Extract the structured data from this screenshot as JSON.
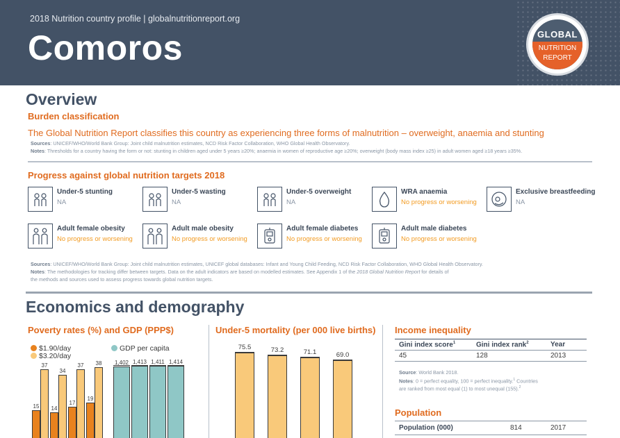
{
  "header": {
    "subtitle": "2018 Nutrition country profile  |  globalnutritionreport.org",
    "country": "Comoros",
    "logo": {
      "top": "GLOBAL",
      "mid": "NUTRITION",
      "bottom": "REPORT"
    },
    "bg_color": "#435266",
    "accent_color": "#e06b1f"
  },
  "overview": {
    "title": "Overview",
    "burden_heading": "Burden classification",
    "burden_text": "The Global Nutrition Report classifies this country as experiencing three forms of malnutrition – overweight, anaemia and stunting",
    "sources_label": "Sources",
    "sources_text": ": UNICEF/WHO/World Bank Group: Joint child malnutrition estimates, NCD Risk Factor Collaboration, WHO Global Health Observatory.",
    "notes_label": "Notes",
    "notes_text": ": Thresholds for a country having the form or not: stunting in children aged under 5 years ≥20%; anaemia in women of reproductive age ≥20%; overweight (body mass index ≥25) in adult women aged ≥18 years ≥35%."
  },
  "progress": {
    "heading": "Progress against global nutrition targets 2018",
    "indicators": [
      {
        "name": "Under-5 stunting",
        "status": "NA",
        "icon": "children-icon"
      },
      {
        "name": "Under-5 wasting",
        "status": "NA",
        "icon": "children-icon"
      },
      {
        "name": "Under-5 overweight",
        "status": "NA",
        "icon": "children-icon"
      },
      {
        "name": "WRA anaemia",
        "status": "No progress or worsening",
        "icon": "blood-drop-icon"
      },
      {
        "name": "Exclusive breastfeeding",
        "status": "NA",
        "icon": "breastfeeding-icon"
      },
      {
        "name": "Adult female obesity",
        "status": "No progress or worsening",
        "icon": "adults-icon"
      },
      {
        "name": "Adult male obesity",
        "status": "No progress or worsening",
        "icon": "adults-icon"
      },
      {
        "name": "Adult female diabetes",
        "status": "No progress or worsening",
        "icon": "glucose-meter-icon"
      },
      {
        "name": "Adult male diabetes",
        "status": "No progress or worsening",
        "icon": "glucose-meter-icon"
      }
    ],
    "sources_label": "Sources",
    "sources_text": ": UNICEF/WHO/World Bank Group: Joint child malnutrition estimates, UNICEF global databases: Infant and Young Child Feeding, NCD Risk Factor Collaboration, WHO Global Health Observatory.",
    "notes_label": "Notes",
    "notes_text_1": ": The methodologies for tracking differ between targets. Data on the adult indicators are based on modelled estimates. See Appendix 1 of the ",
    "notes_italic": "2018 Global Nutrition Report",
    "notes_text_1b": " for details of",
    "notes_text_2": "the methods and sources used to assess progress towards global nutrition targets."
  },
  "economics": {
    "title": "Economics and demography",
    "poverty_heading": "Poverty rates (%) and GDP (PPP$)",
    "mortality_heading": "Under-5 mortality (per 000 live births)",
    "inequality_heading": "Income inequality",
    "population_heading": "Population"
  },
  "chart_data": [
    {
      "type": "bar",
      "title": "Poverty rates (%) and GDP (PPP$)",
      "series": [
        {
          "name": "$1.90/day",
          "color": "#e8821e",
          "values": [
            15,
            14,
            17,
            19
          ]
        },
        {
          "name": "$3.20/day",
          "color": "#f9c97a",
          "values": [
            37,
            34,
            37,
            38
          ]
        },
        {
          "name": "GDP per capita",
          "color": "#8fc7c6",
          "values": [
            1402,
            1413,
            1411,
            1414
          ]
        }
      ],
      "labels": {
        "s1": [
          "15",
          "14",
          "17",
          "19"
        ],
        "s2": [
          "37",
          "34",
          "37",
          "38"
        ],
        "gdp": [
          "1,402",
          "1,413",
          "1,411",
          "1,414"
        ]
      }
    },
    {
      "type": "bar",
      "title": "Under-5 mortality (per 000 live births)",
      "series": [
        {
          "name": "Under-5 mortality",
          "color": "#f9c97a",
          "values": [
            75.5,
            73.2,
            71.1,
            69.0
          ]
        }
      ],
      "labels": [
        "75.5",
        "73.2",
        "71.1",
        "69.0"
      ]
    }
  ],
  "inequality_table": {
    "headers": [
      "Gini index score",
      "Gini index rank",
      "Year"
    ],
    "sup": [
      "1",
      "2",
      ""
    ],
    "row": [
      "45",
      "128",
      "2013"
    ],
    "source_label": "Source",
    "source_text": ": World Bank 2018.",
    "notes_label": "Notes",
    "notes_text": ": 0 = perfect equality, 100 = perfect inequality.",
    "notes_sup1": "1",
    "notes_text2": " Countries",
    "notes_text3": "are ranked from most equal (1) to most unequal (155).",
    "notes_sup2": "2"
  },
  "population_table": {
    "label": "Population (000)",
    "value": "814",
    "year": "2017"
  }
}
